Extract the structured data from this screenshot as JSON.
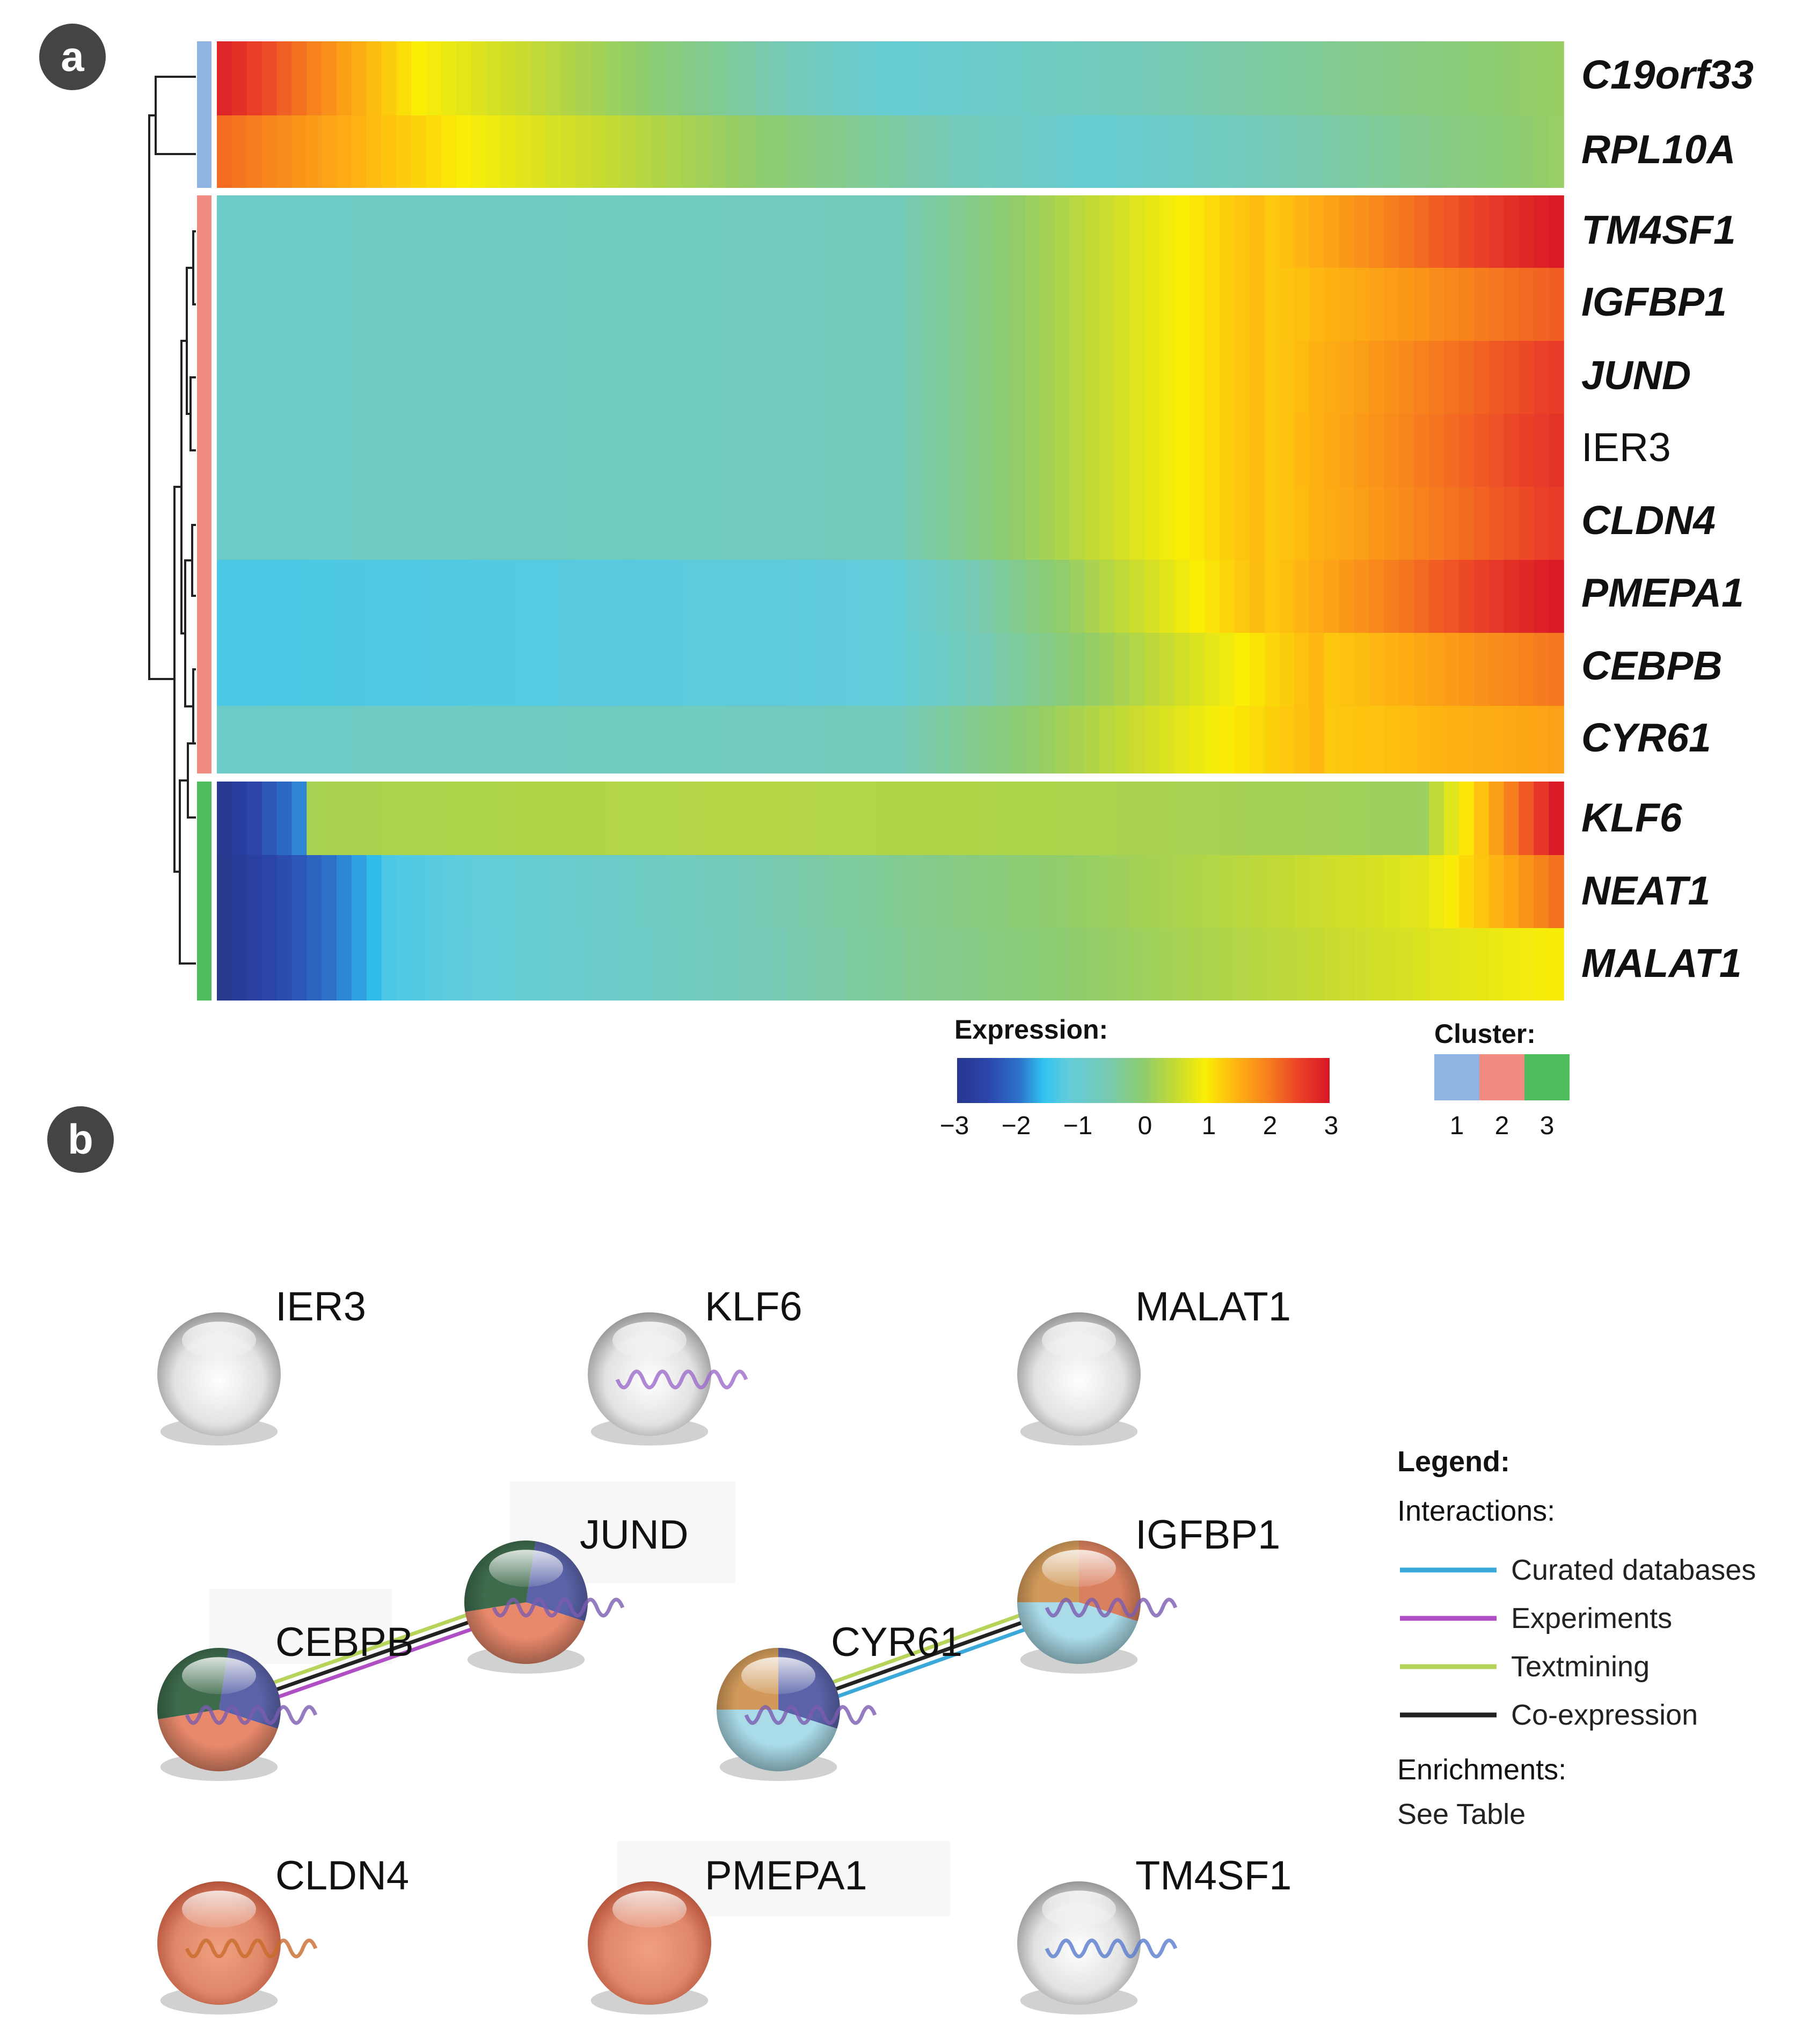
{
  "panel_a": {
    "letter": "a",
    "genes": [
      {
        "name": "C19orf33",
        "cluster": 1,
        "italic": true
      },
      {
        "name": "RPL10A",
        "cluster": 1,
        "italic": true
      },
      {
        "name": "TM4SF1",
        "cluster": 2,
        "italic": true
      },
      {
        "name": "IGFBP1",
        "cluster": 2,
        "italic": true
      },
      {
        "name": "JUND",
        "cluster": 2,
        "italic": true
      },
      {
        "name": "IER3",
        "cluster": 2,
        "italic": false
      },
      {
        "name": "CLDN4",
        "cluster": 2,
        "italic": true
      },
      {
        "name": "PMEPA1",
        "cluster": 2,
        "italic": true
      },
      {
        "name": "CEBPB",
        "cluster": 2,
        "italic": true
      },
      {
        "name": "CYR61",
        "cluster": 2,
        "italic": true
      },
      {
        "name": "KLF6",
        "cluster": 3,
        "italic": true
      },
      {
        "name": "NEAT1",
        "cluster": 3,
        "italic": true
      },
      {
        "name": "MALAT1",
        "cluster": 3,
        "italic": true
      }
    ],
    "expression_legend": {
      "title": "Expression:",
      "ticks": [
        "−3",
        "−2",
        "−1",
        "0",
        "1",
        "2",
        "3"
      ],
      "range": [
        -3,
        3
      ]
    },
    "cluster_legend": {
      "title": "Cluster:",
      "labels": [
        "1",
        "2",
        "3"
      ],
      "colors": [
        "#8fb4e3",
        "#f28b82",
        "#4cbc5c"
      ]
    }
  },
  "panel_b": {
    "letter": "b",
    "nodes": [
      {
        "id": "IER3",
        "label": "IER3",
        "style": "gray"
      },
      {
        "id": "KLF6",
        "label": "KLF6",
        "style": "gray-structure"
      },
      {
        "id": "MALAT1",
        "label": "MALAT1",
        "style": "gray"
      },
      {
        "id": "JUND",
        "label": "JUND",
        "style": "tri"
      },
      {
        "id": "IGFBP1",
        "label": "IGFBP1",
        "style": "quad"
      },
      {
        "id": "CEBPB",
        "label": "CEBPB",
        "style": "tri"
      },
      {
        "id": "CYR61",
        "label": "CYR61",
        "style": "quad"
      },
      {
        "id": "CLDN4",
        "label": "CLDN4",
        "style": "salmon-structure"
      },
      {
        "id": "PMEPA1",
        "label": "PMEPA1",
        "style": "salmon"
      },
      {
        "id": "TM4SF1",
        "label": "TM4SF1",
        "style": "gray-structure"
      }
    ],
    "edges": [
      {
        "source": "CEBPB",
        "target": "JUND",
        "evidence": [
          "Textmining",
          "Co-expression",
          "Experiments"
        ]
      },
      {
        "source": "CYR61",
        "target": "IGFBP1",
        "evidence": [
          "Textmining",
          "Co-expression",
          "Curated databases"
        ]
      }
    ],
    "legend": {
      "title": "Legend:",
      "interactions_title": "Interactions:",
      "items": [
        {
          "label": "Curated databases",
          "color": "#3aa8d8"
        },
        {
          "label": "Experiments",
          "color": "#b04fc4"
        },
        {
          "label": "Textmining",
          "color": "#b6d35a"
        },
        {
          "label": "Co-expression",
          "color": "#222222"
        }
      ],
      "enrichments_title": "Enrichments:",
      "enrichments_text": "See Table"
    }
  }
}
